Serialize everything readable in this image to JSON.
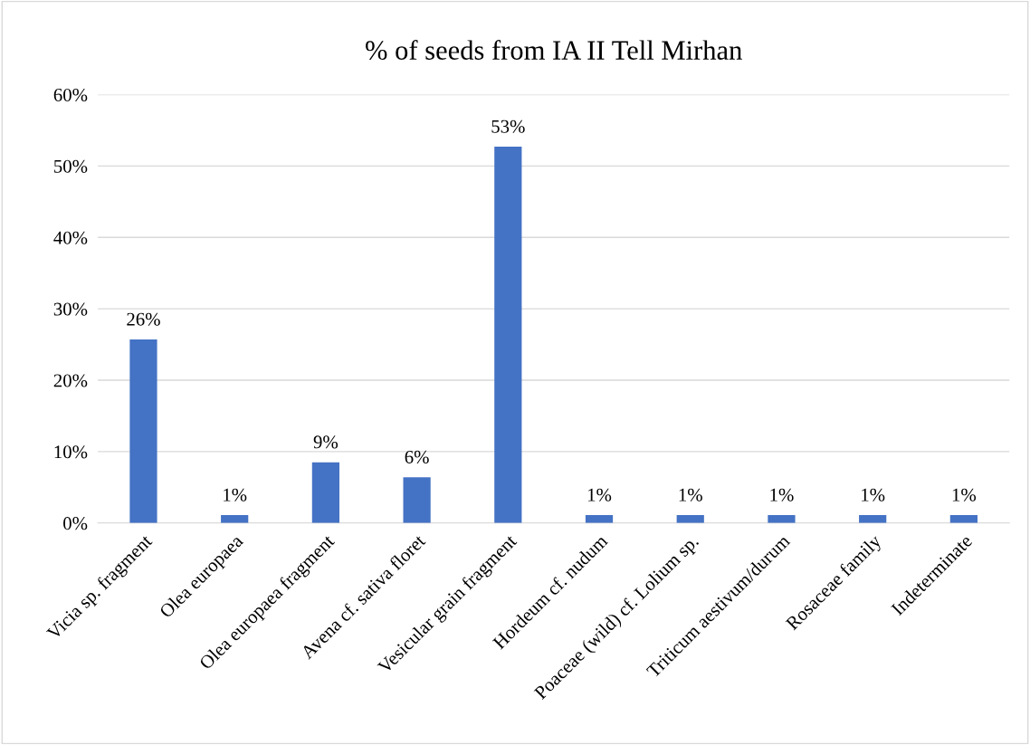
{
  "chart_data": {
    "type": "bar",
    "title": "% of seeds from IA II Tell Mirhan",
    "categories": [
      "Vicia sp. fragment",
      "Olea europaea",
      "Olea europaea fragment",
      "Avena cf. sativa floret",
      "Vesicular grain fragment",
      "Hordeum cf. nudum",
      "Poaceae (wild) cf. Lolium sp.",
      "Triticum aestivum/durum",
      "Rosaceae family",
      "Indeterminate"
    ],
    "values": [
      25.7,
      1.1,
      8.5,
      6.4,
      52.7,
      1.1,
      1.1,
      1.1,
      1.1,
      1.1
    ],
    "value_labels": [
      "26%",
      "1%",
      "9%",
      "6%",
      "53%",
      "1%",
      "1%",
      "1%",
      "1%",
      "1%"
    ],
    "color": "#4472c4",
    "ylim": [
      0,
      60
    ],
    "yticks": [
      {
        "value": 0,
        "label": "0%"
      },
      {
        "value": 10,
        "label": "10%"
      },
      {
        "value": 20,
        "label": "20%"
      },
      {
        "value": 30,
        "label": "30%"
      },
      {
        "value": 40,
        "label": "40%"
      },
      {
        "value": 50,
        "label": "50%"
      },
      {
        "value": 60,
        "label": "60%"
      }
    ],
    "grid": "y",
    "legend": false
  }
}
